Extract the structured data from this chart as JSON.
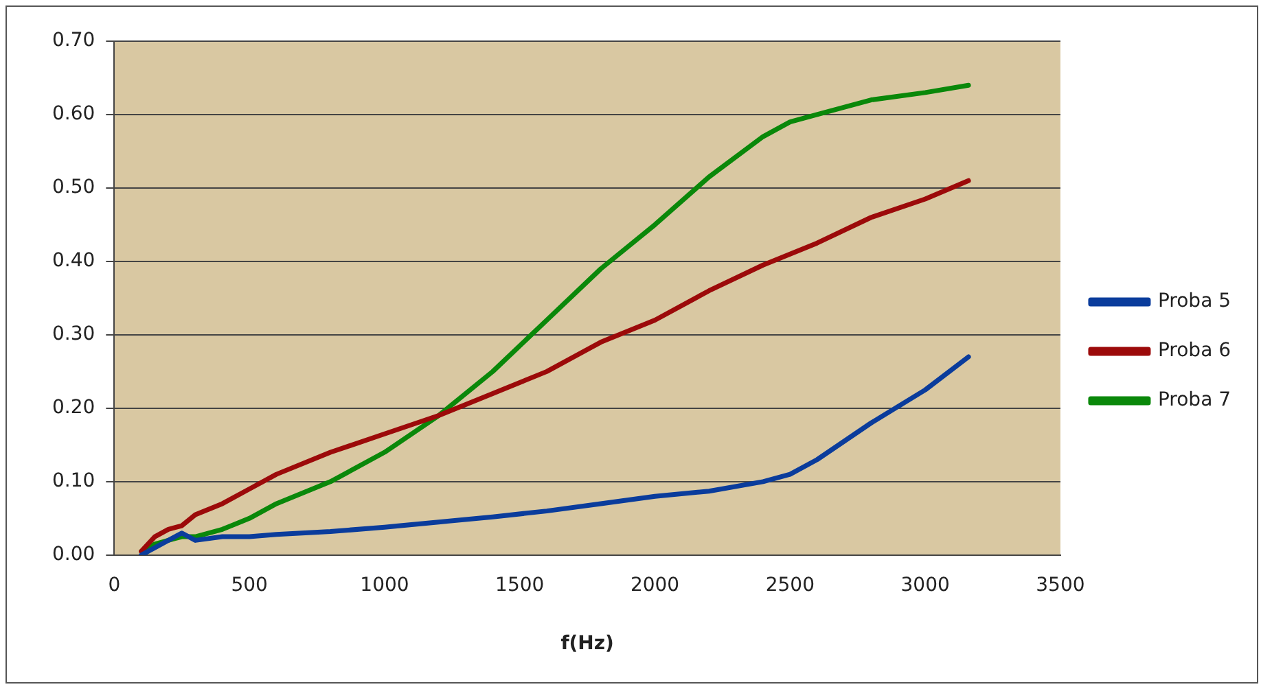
{
  "chart_data": {
    "type": "line",
    "xlabel": "f(Hz)",
    "x": [
      100,
      150,
      200,
      250,
      300,
      400,
      500,
      600,
      800,
      1000,
      1200,
      1400,
      1600,
      1800,
      2000,
      2200,
      2400,
      2500,
      2600,
      2800,
      3000,
      3160
    ],
    "xlim": [
      0,
      3500
    ],
    "xticks": [
      0,
      500,
      1000,
      1500,
      2000,
      2500,
      3000,
      3500
    ],
    "ylim": [
      0,
      0.7
    ],
    "yticks": [
      {
        "value": 0,
        "label": "0.00"
      },
      {
        "value": 0.1,
        "label": "0.10"
      },
      {
        "value": 0.2,
        "label": "0.20"
      },
      {
        "value": 0.3,
        "label": "0.30"
      },
      {
        "value": 0.4,
        "label": "0.40"
      },
      {
        "value": 0.5,
        "label": "0.50"
      },
      {
        "value": 0.6,
        "label": "0.60"
      },
      {
        "value": 0.7,
        "label": "0.70"
      }
    ],
    "grid": "y",
    "legend": "right",
    "marker": "none",
    "line_style": "solid",
    "series": [
      {
        "name": "Proba 5",
        "color": "#0a3c9c",
        "values": [
          0.0,
          0.01,
          0.02,
          0.03,
          0.02,
          0.025,
          0.025,
          0.028,
          0.032,
          0.038,
          0.045,
          0.052,
          0.06,
          0.07,
          0.08,
          0.087,
          0.1,
          0.11,
          0.13,
          0.18,
          0.225,
          0.27
        ]
      },
      {
        "name": "Proba 6",
        "color": "#9c0a0a",
        "values": [
          0.005,
          0.025,
          0.035,
          0.04,
          0.055,
          0.07,
          0.09,
          0.11,
          0.14,
          0.165,
          0.19,
          0.22,
          0.25,
          0.29,
          0.32,
          0.36,
          0.395,
          0.41,
          0.425,
          0.46,
          0.485,
          0.51
        ]
      },
      {
        "name": "Proba 7",
        "color": "#0a880a",
        "values": [
          0.005,
          0.015,
          0.02,
          0.025,
          0.025,
          0.035,
          0.05,
          0.07,
          0.1,
          0.14,
          0.19,
          0.25,
          0.32,
          0.39,
          0.45,
          0.515,
          0.57,
          0.59,
          0.6,
          0.62,
          0.63,
          0.64
        ]
      }
    ]
  }
}
